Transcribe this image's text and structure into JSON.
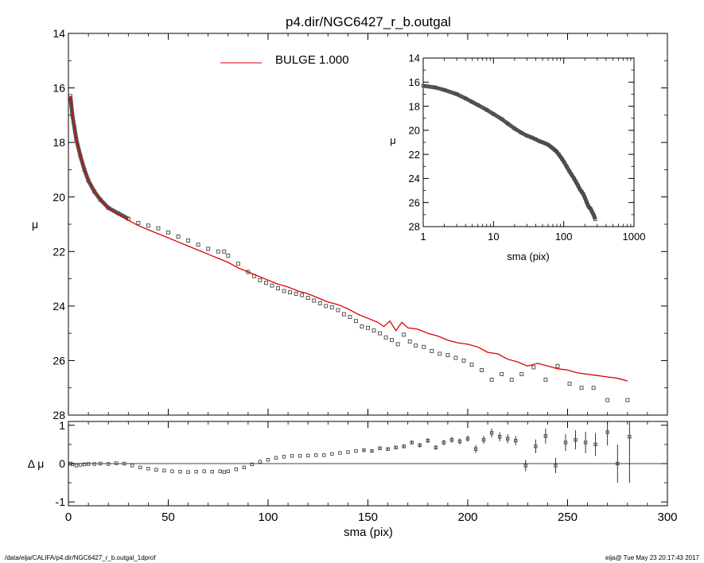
{
  "title": "p4.dir/NGC6427_r_b.outgal",
  "footer": {
    "left": "/data/eija/CALIFA/p4.dir/NGC6427_r_b.outgal_1dprof",
    "right": "eija@  Tue May 23 20:17:43 2017"
  },
  "colors": {
    "model": "#dd0000",
    "data": "#444444",
    "axes": "#000000"
  },
  "legend": {
    "label": "BULGE  1.000",
    "placement": "top-center"
  },
  "chart_data": [
    {
      "type": "scatter",
      "panel": "main",
      "xlabel": "sma (pix)",
      "ylabel": "μ",
      "xlim": [
        0,
        300
      ],
      "ylim": [
        28,
        14
      ],
      "y_inverted": true,
      "x_ticks": [
        "0",
        "50",
        "100",
        "150",
        "200",
        "250",
        "300"
      ],
      "y_ticks": [
        "14",
        "16",
        "18",
        "20",
        "22",
        "24",
        "26",
        "28"
      ],
      "series": [
        {
          "name": "BULGE  1.000",
          "style": "line",
          "x": [
            1,
            2,
            4,
            6,
            8,
            10,
            13,
            16,
            20,
            25,
            30,
            35,
            40,
            45,
            50,
            55,
            60,
            65,
            70,
            75,
            80,
            85,
            90,
            95,
            100,
            105,
            110,
            115,
            120,
            125,
            130,
            135,
            140,
            145,
            150,
            155,
            158,
            161,
            164,
            167,
            170,
            175,
            180,
            185,
            190,
            195,
            200,
            205,
            210,
            215,
            220,
            225,
            230,
            235,
            240,
            245,
            250,
            255,
            260,
            265,
            270,
            275,
            280
          ],
          "y": [
            16.3,
            17.0,
            17.9,
            18.5,
            19.0,
            19.4,
            19.8,
            20.1,
            20.4,
            20.65,
            20.85,
            21.05,
            21.2,
            21.35,
            21.5,
            21.65,
            21.8,
            21.95,
            22.1,
            22.25,
            22.4,
            22.6,
            22.75,
            22.9,
            23.05,
            23.2,
            23.3,
            23.45,
            23.55,
            23.7,
            23.85,
            23.95,
            24.1,
            24.3,
            24.45,
            24.6,
            24.75,
            24.55,
            24.9,
            24.6,
            24.8,
            24.85,
            25.0,
            25.1,
            25.25,
            25.35,
            25.4,
            25.5,
            25.7,
            25.75,
            25.95,
            26.05,
            26.2,
            26.1,
            26.2,
            26.3,
            26.35,
            26.45,
            26.5,
            26.55,
            26.6,
            26.65,
            26.75
          ]
        },
        {
          "name": "",
          "style": "squares",
          "x": [
            1,
            2,
            4,
            6,
            8,
            10,
            13,
            16,
            20,
            25,
            30,
            35,
            40,
            45,
            50,
            55,
            60,
            65,
            70,
            75,
            78,
            80,
            85,
            90,
            93,
            96,
            99,
            102,
            105,
            108,
            111,
            114,
            117,
            120,
            123,
            126,
            129,
            132,
            135,
            138,
            141,
            144,
            147,
            150,
            153,
            156,
            159,
            162,
            165,
            168,
            171,
            174,
            178,
            182,
            186,
            190,
            194,
            198,
            202,
            207,
            212,
            217,
            222,
            227,
            233,
            239,
            245,
            251,
            257,
            263,
            270,
            280
          ],
          "y": [
            16.3,
            17.0,
            17.9,
            18.5,
            19.0,
            19.4,
            19.8,
            20.1,
            20.4,
            20.6,
            20.8,
            20.95,
            21.05,
            21.15,
            21.3,
            21.45,
            21.6,
            21.75,
            21.9,
            22.0,
            22.0,
            22.15,
            22.45,
            22.75,
            22.9,
            23.05,
            23.15,
            23.25,
            23.35,
            23.45,
            23.5,
            23.55,
            23.6,
            23.7,
            23.8,
            23.9,
            24.0,
            24.05,
            24.15,
            24.3,
            24.4,
            24.55,
            24.75,
            24.8,
            24.9,
            25.0,
            25.15,
            25.25,
            25.4,
            25.05,
            25.3,
            25.45,
            25.5,
            25.65,
            25.75,
            25.8,
            25.9,
            26.0,
            26.15,
            26.35,
            26.7,
            26.5,
            26.7,
            26.5,
            26.25,
            26.7,
            26.2,
            26.85,
            27.0,
            27.0,
            27.45,
            27.45
          ]
        }
      ]
    },
    {
      "type": "scatter",
      "panel": "inset",
      "xlabel": "sma (pix)",
      "ylabel": "μ",
      "xscale": "log",
      "xlim": [
        1,
        1000
      ],
      "ylim": [
        28,
        14
      ],
      "y_inverted": true,
      "x_ticks": [
        "1",
        "10",
        "100",
        "1000"
      ],
      "y_ticks": [
        "14",
        "16",
        "18",
        "20",
        "22",
        "24",
        "26",
        "28"
      ],
      "series": [
        {
          "name": "",
          "style": "squares",
          "x": [
            1,
            1.5,
            2,
            3,
            4,
            5,
            6,
            8,
            10,
            13,
            16,
            20,
            25,
            30,
            35,
            40,
            45,
            50,
            55,
            60,
            65,
            70,
            75,
            80,
            85,
            90,
            95,
            100,
            110,
            120,
            130,
            140,
            150,
            160,
            170,
            180,
            190,
            200,
            210,
            220,
            230,
            240,
            250,
            260,
            270,
            280
          ],
          "y": [
            16.3,
            16.45,
            16.65,
            17.0,
            17.35,
            17.65,
            17.9,
            18.3,
            18.65,
            19.05,
            19.45,
            19.85,
            20.2,
            20.45,
            20.6,
            20.75,
            20.9,
            21.0,
            21.1,
            21.2,
            21.35,
            21.5,
            21.65,
            21.8,
            22.0,
            22.2,
            22.4,
            22.6,
            23.0,
            23.4,
            23.7,
            24.0,
            24.3,
            24.6,
            24.9,
            25.1,
            25.3,
            25.6,
            25.9,
            26.2,
            26.4,
            26.5,
            26.7,
            26.9,
            27.1,
            27.4
          ]
        }
      ]
    },
    {
      "type": "scatter",
      "panel": "residual",
      "xlabel": "sma (pix)",
      "ylabel": "Δ μ",
      "xlim": [
        0,
        300
      ],
      "ylim": [
        -1.1,
        1.1
      ],
      "x_ticks": [
        "0",
        "50",
        "100",
        "150",
        "200",
        "250",
        "300"
      ],
      "y_ticks": [
        "-1",
        "0",
        "1"
      ],
      "series": [
        {
          "name": "",
          "style": "squares_errorbars",
          "x": [
            1,
            2,
            4,
            6,
            8,
            10,
            13,
            16,
            20,
            24,
            28,
            32,
            36,
            40,
            44,
            48,
            52,
            56,
            60,
            64,
            68,
            72,
            76,
            78,
            80,
            84,
            88,
            92,
            96,
            100,
            104,
            108,
            112,
            116,
            120,
            124,
            128,
            132,
            136,
            140,
            144,
            148,
            152,
            156,
            160,
            164,
            168,
            172,
            176,
            180,
            184,
            188,
            192,
            196,
            200,
            204,
            208,
            212,
            216,
            220,
            224,
            229,
            234,
            239,
            244,
            249,
            254,
            259,
            264,
            270,
            275,
            281
          ],
          "y": [
            0.0,
            -0.02,
            -0.05,
            -0.03,
            -0.02,
            -0.01,
            -0.01,
            0.0,
            -0.01,
            0.01,
            0.0,
            -0.05,
            -0.1,
            -0.13,
            -0.16,
            -0.18,
            -0.2,
            -0.21,
            -0.22,
            -0.21,
            -0.2,
            -0.21,
            -0.2,
            -0.22,
            -0.2,
            -0.15,
            -0.1,
            -0.02,
            0.05,
            0.1,
            0.15,
            0.18,
            0.2,
            0.2,
            0.21,
            0.22,
            0.22,
            0.25,
            0.28,
            0.3,
            0.33,
            0.35,
            0.33,
            0.4,
            0.38,
            0.42,
            0.45,
            0.55,
            0.48,
            0.6,
            0.42,
            0.55,
            0.62,
            0.58,
            0.65,
            0.38,
            0.62,
            0.8,
            0.7,
            0.65,
            0.6,
            -0.05,
            0.45,
            0.72,
            -0.05,
            0.55,
            0.62,
            0.55,
            0.5,
            0.82,
            0.0,
            0.7
          ],
          "err": [
            0.005,
            0.005,
            0.005,
            0.005,
            0.005,
            0.005,
            0.005,
            0.005,
            0.005,
            0.005,
            0.005,
            0.005,
            0.005,
            0.005,
            0.005,
            0.005,
            0.005,
            0.005,
            0.005,
            0.005,
            0.005,
            0.005,
            0.005,
            0.005,
            0.01,
            0.01,
            0.01,
            0.01,
            0.01,
            0.01,
            0.01,
            0.01,
            0.01,
            0.01,
            0.01,
            0.02,
            0.02,
            0.02,
            0.02,
            0.02,
            0.02,
            0.03,
            0.03,
            0.03,
            0.04,
            0.04,
            0.05,
            0.05,
            0.06,
            0.06,
            0.06,
            0.07,
            0.08,
            0.08,
            0.08,
            0.1,
            0.1,
            0.12,
            0.12,
            0.12,
            0.12,
            0.15,
            0.18,
            0.2,
            0.2,
            0.22,
            0.25,
            0.28,
            0.3,
            0.35,
            0.5,
            1.2
          ]
        }
      ]
    }
  ]
}
